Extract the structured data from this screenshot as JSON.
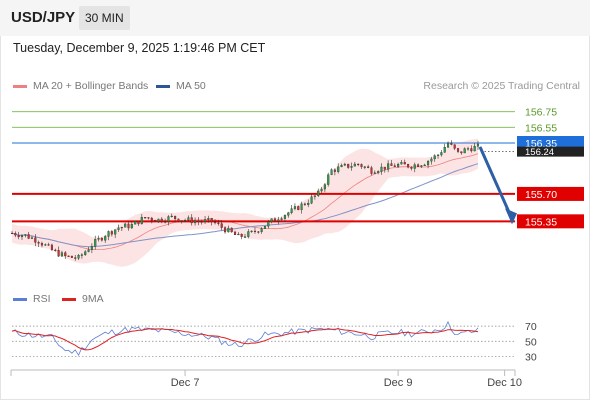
{
  "header": {
    "pair": "USD/JPY",
    "timeframe": "30 MIN"
  },
  "datetime": "Tuesday, December 9, 2025 1:19:46 PM CET",
  "legend": {
    "ma20": {
      "label": "MA 20 + Bollinger Bands",
      "color": "#f08080"
    },
    "ma50": {
      "label": "MA 50",
      "color": "#2f5597"
    }
  },
  "credit": "Research © 2025 Trading Central",
  "rsi_legend": {
    "rsi": {
      "label": "RSI",
      "color": "#5b7fd4"
    },
    "ma9": {
      "label": "9MA",
      "color": "#dd2222"
    }
  },
  "chart_data": [
    {
      "type": "candlestick",
      "ylim": [
        154.55,
        156.95
      ],
      "x_ticks": [
        {
          "label": "Dec 7",
          "index": 52
        },
        {
          "label": "Dec 9",
          "index": 116
        },
        {
          "label": "Dec 10",
          "index": 148
        }
      ],
      "levels": [
        {
          "label": "156.75",
          "value": 156.75,
          "color": "#7ab648",
          "style": "thin"
        },
        {
          "label": "156.55",
          "value": 156.55,
          "color": "#7ab648",
          "style": "thin"
        },
        {
          "label": "156.35",
          "value": 156.35,
          "color": "#1e6fd9",
          "style": "pivot"
        },
        {
          "label": "155.70",
          "value": 155.7,
          "color": "#e00000",
          "style": "support"
        },
        {
          "label": "155.35",
          "value": 155.35,
          "color": "#e00000",
          "style": "support"
        }
      ],
      "last_price": {
        "label": "156.24",
        "value": 156.24
      },
      "forecast_arrow": {
        "from": 156.3,
        "to": 155.35
      },
      "anchors": [
        [
          0,
          155.2
        ],
        [
          4,
          155.17
        ],
        [
          8,
          155.1
        ],
        [
          12,
          154.98
        ],
        [
          16,
          154.9
        ],
        [
          20,
          154.88
        ],
        [
          24,
          155.05
        ],
        [
          28,
          155.18
        ],
        [
          32,
          155.27
        ],
        [
          36,
          155.3
        ],
        [
          40,
          155.4
        ],
        [
          44,
          155.37
        ],
        [
          48,
          155.4
        ],
        [
          52,
          155.37
        ],
        [
          56,
          155.35
        ],
        [
          60,
          155.35
        ],
        [
          64,
          155.25
        ],
        [
          68,
          155.15
        ],
        [
          72,
          155.2
        ],
        [
          76,
          155.3
        ],
        [
          80,
          155.4
        ],
        [
          84,
          155.48
        ],
        [
          88,
          155.58
        ],
        [
          92,
          155.7
        ],
        [
          96,
          156.0
        ],
        [
          100,
          156.05
        ],
        [
          104,
          156.08
        ],
        [
          108,
          156.0
        ],
        [
          112,
          156.04
        ],
        [
          116,
          156.07
        ],
        [
          120,
          156.06
        ],
        [
          124,
          156.1
        ],
        [
          128,
          156.2
        ],
        [
          131,
          156.35
        ],
        [
          134,
          156.22
        ],
        [
          137,
          156.28
        ],
        [
          140,
          156.3
        ]
      ],
      "rsi": {
        "ylim": [
          20,
          82
        ],
        "levels": [
          {
            "label": "70",
            "value": 70
          },
          {
            "label": "50",
            "value": 50
          },
          {
            "label": "30",
            "value": 30
          }
        ],
        "anchors": [
          [
            0,
            62
          ],
          [
            6,
            58
          ],
          [
            12,
            55
          ],
          [
            16,
            38
          ],
          [
            20,
            35
          ],
          [
            24,
            52
          ],
          [
            28,
            60
          ],
          [
            32,
            64
          ],
          [
            36,
            66
          ],
          [
            40,
            65
          ],
          [
            44,
            64
          ],
          [
            48,
            62
          ],
          [
            52,
            60
          ],
          [
            56,
            58
          ],
          [
            60,
            55
          ],
          [
            64,
            48
          ],
          [
            68,
            45
          ],
          [
            72,
            52
          ],
          [
            76,
            58
          ],
          [
            80,
            60
          ],
          [
            84,
            62
          ],
          [
            88,
            64
          ],
          [
            92,
            66
          ],
          [
            96,
            65
          ],
          [
            100,
            62
          ],
          [
            104,
            60
          ],
          [
            108,
            56
          ],
          [
            112,
            60
          ],
          [
            116,
            62
          ],
          [
            120,
            60
          ],
          [
            124,
            62
          ],
          [
            128,
            66
          ],
          [
            131,
            72
          ],
          [
            134,
            58
          ],
          [
            137,
            62
          ],
          [
            140,
            64
          ]
        ]
      }
    }
  ]
}
